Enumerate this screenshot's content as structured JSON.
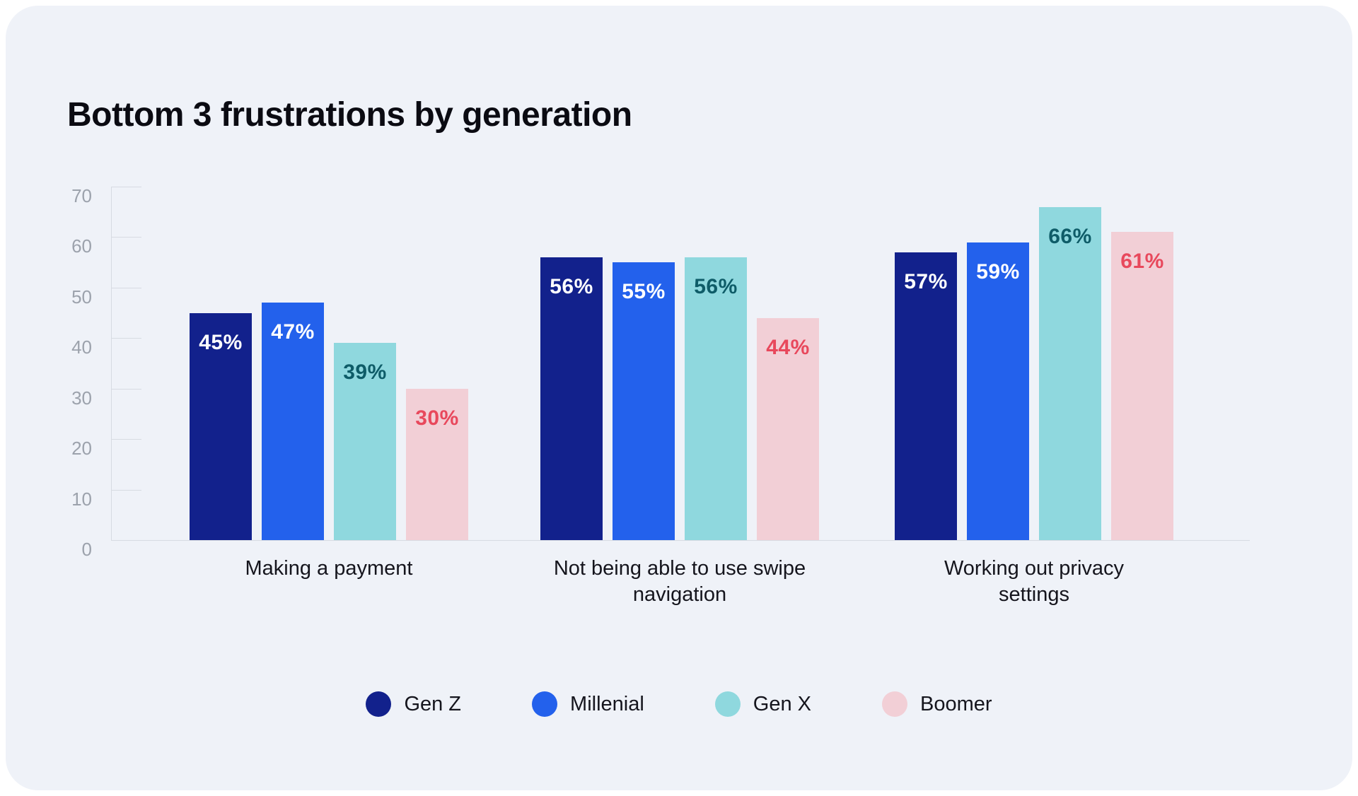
{
  "title": "Bottom 3 frustrations by generation",
  "chart_data": {
    "type": "bar",
    "title": "Bottom 3 frustrations by generation",
    "categories": [
      "Making a payment",
      "Not being able to use swipe navigation",
      "Working out privacy settings"
    ],
    "series": [
      {
        "name": "Gen Z",
        "color": "#12218C",
        "label_color": "#FFFFFF",
        "values": [
          45,
          56,
          57
        ]
      },
      {
        "name": "Millenial",
        "color": "#2361EC",
        "label_color": "#FFFFFF",
        "values": [
          47,
          55,
          59
        ]
      },
      {
        "name": "Gen X",
        "color": "#8FD8DE",
        "label_color": "#0E5C68",
        "values": [
          39,
          56,
          66
        ]
      },
      {
        "name": "Boomer",
        "color": "#F2CFD6",
        "label_color": "#E8485C",
        "values": [
          30,
          44,
          61
        ]
      }
    ],
    "value_suffix": "%",
    "value_labels": [
      [
        "45%",
        "56%",
        "57%"
      ],
      [
        "47%",
        "55%",
        "59%"
      ],
      [
        "39%",
        "56%",
        "66%"
      ],
      [
        "30%",
        "44%",
        "61%"
      ]
    ],
    "yticks": [
      0,
      10,
      20,
      30,
      40,
      50,
      60,
      70
    ],
    "ylim": [
      0,
      70
    ],
    "grid": false,
    "legend_position": "bottom"
  },
  "colors": {
    "panel_background": "#EFF2F8",
    "outer_background": "#FFFFFF",
    "axis_line": "#D7DBE2",
    "tick_label": "#9CA2AC",
    "title_text": "#0B0B12",
    "category_text": "#15151D"
  }
}
